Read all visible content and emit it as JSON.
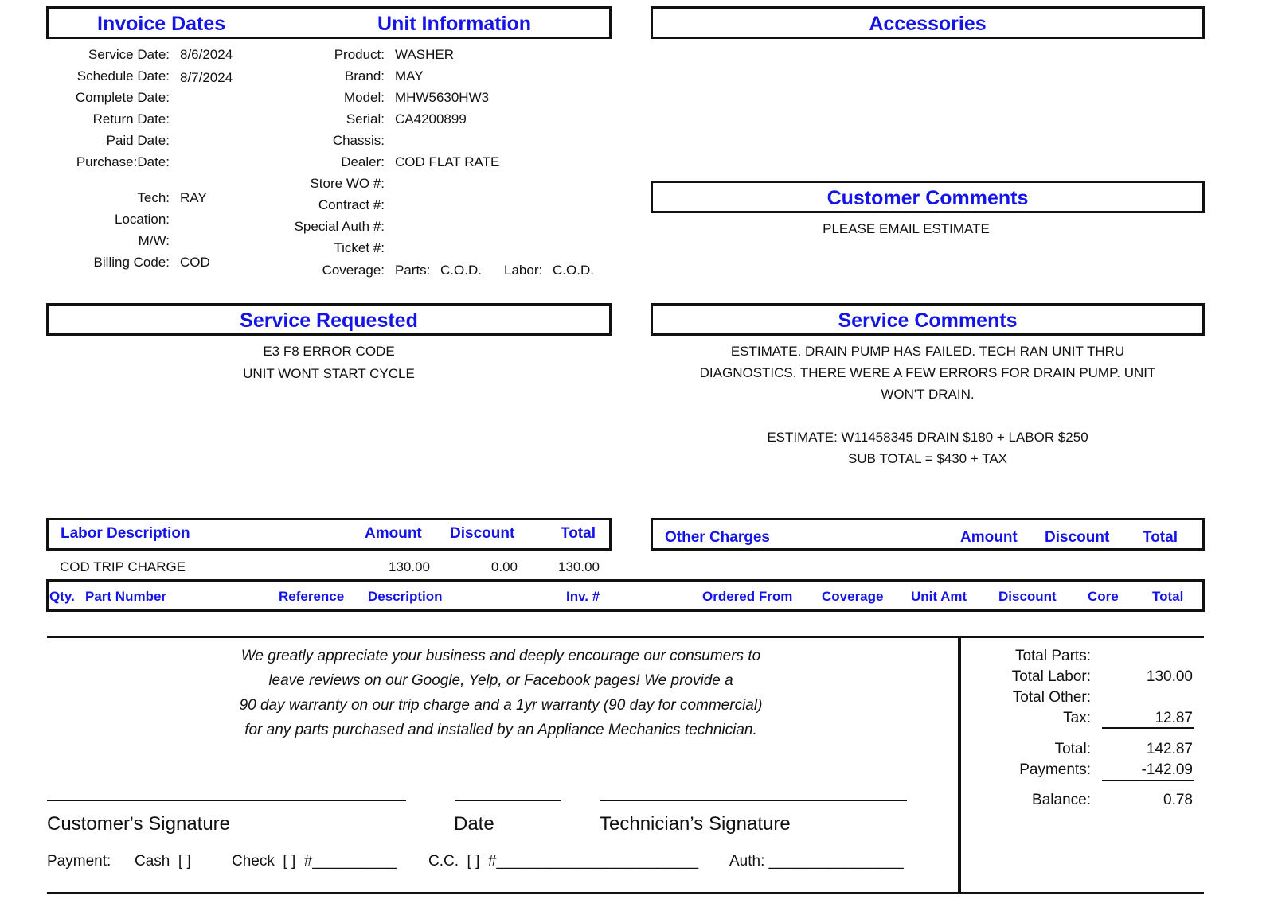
{
  "headers": {
    "invoice_dates": "Invoice Dates",
    "unit_information": "Unit Information",
    "accessories": "Accessories",
    "customer_comments": "Customer Comments",
    "service_requested": "Service Requested",
    "service_comments": "Service Comments"
  },
  "invoice_dates": [
    {
      "label": "Service Date:",
      "value": "8/6/2024"
    },
    {
      "label": "Schedule Date:",
      "value": "8/7/2024"
    },
    {
      "label": "Complete Date:",
      "value": ""
    },
    {
      "label": "Return Date:",
      "value": ""
    },
    {
      "label": "Paid Date:",
      "value": ""
    },
    {
      "label": "Purchase:Date:",
      "value": ""
    }
  ],
  "tech_info": [
    {
      "label": "Tech:",
      "value": "RAY"
    },
    {
      "label": "Location:",
      "value": ""
    },
    {
      "label": "M/W:",
      "value": ""
    },
    {
      "label": "Billing Code:",
      "value": "COD"
    }
  ],
  "unit_info": [
    {
      "label": "Product:",
      "value": "WASHER"
    },
    {
      "label": "Brand:",
      "value": "MAY"
    },
    {
      "label": "Model:",
      "value": "MHW5630HW3"
    },
    {
      "label": "Serial:",
      "value": "CA4200899"
    },
    {
      "label": "Chassis:",
      "value": ""
    },
    {
      "label": "Dealer:",
      "value": "COD FLAT RATE"
    },
    {
      "label": "Store WO #:",
      "value": ""
    },
    {
      "label": "Contract #:",
      "value": ""
    },
    {
      "label": "Special Auth #:",
      "value": ""
    },
    {
      "label": "Ticket #:",
      "value": ""
    }
  ],
  "coverage": {
    "label": "Coverage:",
    "parts_label": "Parts:",
    "parts": "C.O.D.",
    "labor_label": "Labor:",
    "labor": "C.O.D."
  },
  "customer_comments": "PLEASE EMAIL ESTIMATE",
  "service_requested": [
    "E3 F8 ERROR CODE",
    "UNIT WONT START CYCLE"
  ],
  "service_comments": [
    "ESTIMATE. DRAIN PUMP HAS FAILED. TECH RAN UNIT THRU",
    "DIAGNOSTICS. THERE WERE A FEW ERRORS FOR DRAIN PUMP. UNIT",
    "WON'T DRAIN.",
    "",
    "ESTIMATE: W11458345 DRAIN $180 + LABOR $250",
    "SUB TOTAL = $430 + TAX"
  ],
  "labor": {
    "headers": [
      "Labor Description",
      "Amount",
      "Discount",
      "Total"
    ],
    "rows": [
      {
        "description": "COD TRIP CHARGE",
        "amount": "130.00",
        "discount": "0.00",
        "total": "130.00"
      }
    ]
  },
  "other_charges": {
    "headers": [
      "Other Charges",
      "Amount",
      "Discount",
      "Total"
    ]
  },
  "parts": {
    "headers": [
      "Qty.",
      "Part Number",
      "Reference",
      "Description",
      "Inv. #",
      "Ordered From",
      "Coverage",
      "Unit Amt",
      "Discount",
      "Core",
      "Total"
    ]
  },
  "message": [
    "We greatly appreciate your business and deeply encourage our consumers to",
    "leave reviews on our Google, Yelp, or Facebook pages! We provide a",
    "90 day warranty on our trip charge and a 1yr warranty (90 day for commercial)",
    "for any parts purchased and installed by an Appliance Mechanics technician."
  ],
  "signatures": {
    "customer": "Customer's Signature",
    "date": "Date",
    "technician": "Technician’s Signature"
  },
  "payment": {
    "label": "Payment:",
    "cash": "Cash  [ ]",
    "check": "Check  [ ]  #__________",
    "cc": "C.C.  [ ]  #________________________",
    "auth": "Auth: ________________"
  },
  "totals": [
    {
      "label": "Total Parts:",
      "value": ""
    },
    {
      "label": "Total Labor:",
      "value": "130.00"
    },
    {
      "label": "Total Other:",
      "value": ""
    },
    {
      "label": "Tax:",
      "value": "12.87"
    },
    {
      "label": "Total:",
      "value": "142.87"
    },
    {
      "label": "Payments:",
      "value": "-142.09"
    },
    {
      "label": "Balance:",
      "value": "0.78"
    }
  ],
  "colors": {
    "heading": "#1414e6",
    "text": "#111111"
  }
}
